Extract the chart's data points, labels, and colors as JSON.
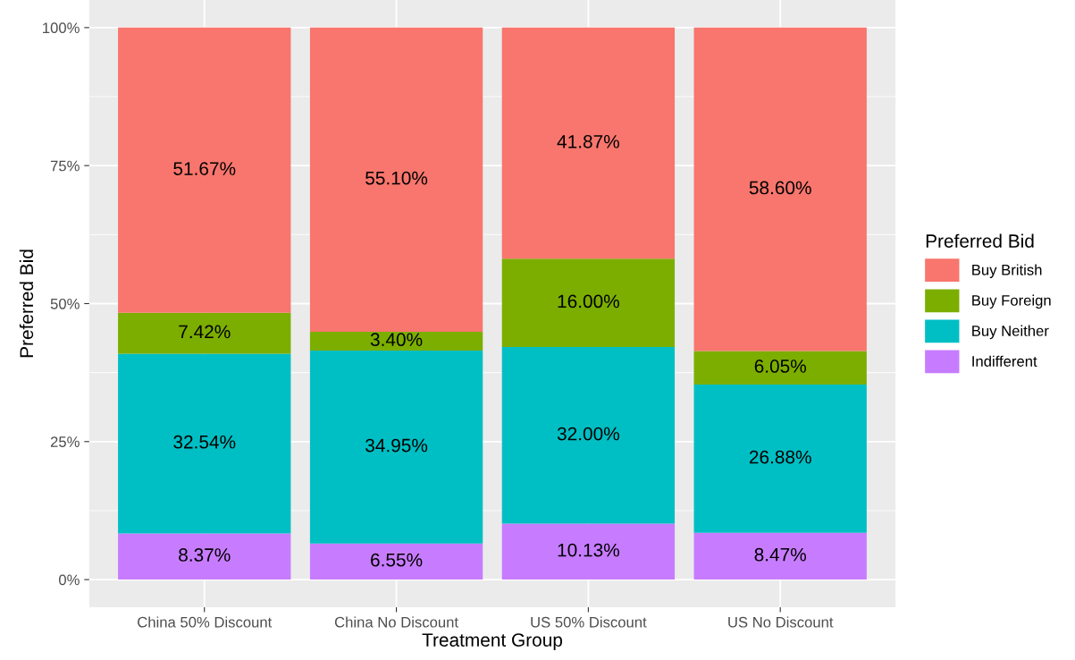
{
  "chart_data": {
    "type": "bar",
    "stacked": true,
    "xlabel": "Treatment Group",
    "ylabel": "Preferred Bid",
    "legend_title": "Preferred Bid",
    "legend": "right",
    "categories": [
      "China 50% Discount",
      "China No Discount",
      "US 50% Discount",
      "US No Discount"
    ],
    "series": [
      {
        "name": "Indifferent",
        "color": "#c77cff",
        "values": [
          8.37,
          6.55,
          10.13,
          8.47
        ],
        "value_labels": [
          "8.37%",
          "6.55%",
          "10.13%",
          "8.47%"
        ]
      },
      {
        "name": "Buy Neither",
        "color": "#00bfc4",
        "values": [
          32.54,
          34.95,
          32.0,
          26.88
        ],
        "value_labels": [
          "32.54%",
          "34.95%",
          "32.00%",
          "26.88%"
        ]
      },
      {
        "name": "Buy Foreign",
        "color": "#7cae00",
        "values": [
          7.42,
          3.4,
          16.0,
          6.05
        ],
        "value_labels": [
          "7.42%",
          "3.40%",
          "16.00%",
          "6.05%"
        ]
      },
      {
        "name": "Buy British",
        "color": "#f8766d",
        "values": [
          51.67,
          55.1,
          41.87,
          58.6
        ],
        "value_labels": [
          "51.67%",
          "55.10%",
          "41.87%",
          "58.60%"
        ]
      }
    ],
    "ylim": [
      -5,
      105
    ],
    "yticks": [
      {
        "value": 0,
        "label": "0%"
      },
      {
        "value": 25,
        "label": "25%"
      },
      {
        "value": 50,
        "label": "50%"
      },
      {
        "value": 75,
        "label": "75%"
      },
      {
        "value": 100,
        "label": "100%"
      }
    ],
    "grid": true
  }
}
